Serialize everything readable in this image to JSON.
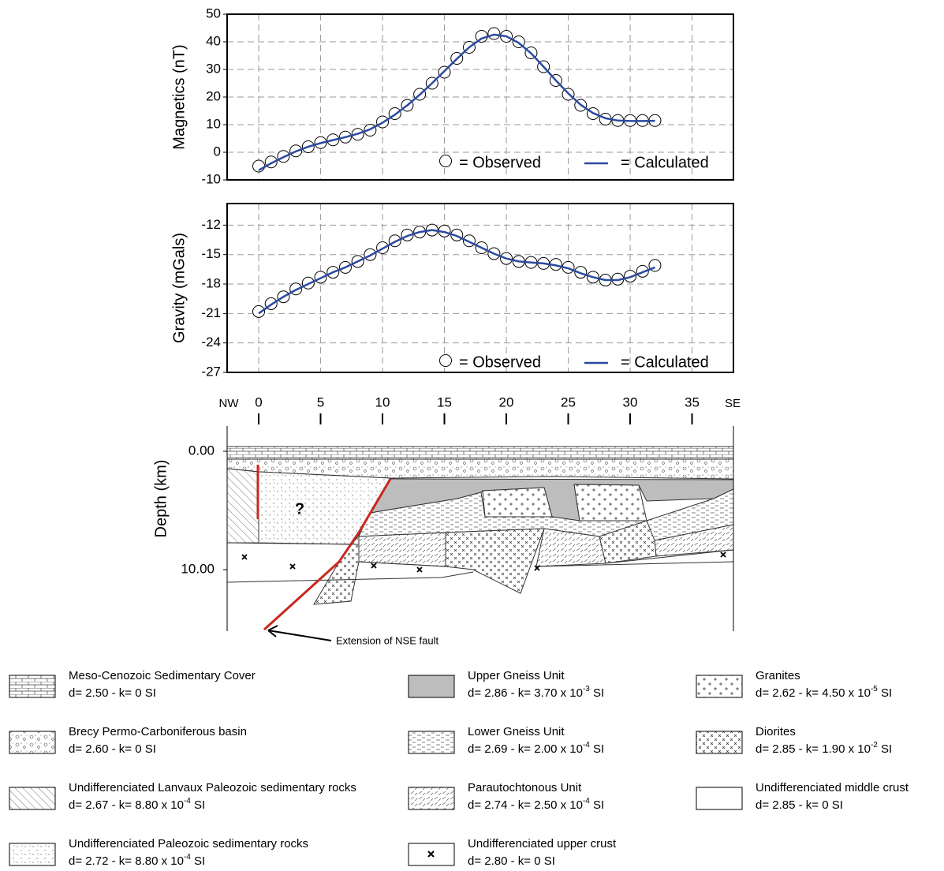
{
  "chart_data": [
    {
      "type": "line",
      "ylabel": "Magnetics (nT)",
      "xlim": [
        -2.55,
        38.34
      ],
      "ylim": [
        -10,
        50
      ],
      "yticks": [
        -10,
        0,
        10,
        20,
        30,
        40,
        50
      ],
      "xticks": [
        0,
        5,
        10,
        15,
        20,
        25,
        30,
        35
      ],
      "grid": true,
      "x": [
        0,
        1,
        2,
        3,
        4,
        5,
        6,
        7,
        8,
        9,
        10,
        11,
        12,
        13,
        14,
        15,
        16,
        17,
        18,
        19,
        20,
        21,
        22,
        23,
        24,
        25,
        26,
        27,
        28,
        29,
        30,
        31,
        32
      ],
      "series": [
        {
          "name": "= Observed",
          "color": "#000000",
          "marker": "circle",
          "values": [
            -5,
            -3.5,
            -1.5,
            0.5,
            2,
            3.5,
            4.5,
            5.5,
            6.5,
            8,
            11,
            14,
            17,
            21,
            25,
            29,
            34,
            38,
            42,
            43,
            42,
            40,
            36,
            31,
            26,
            21,
            17,
            14,
            12,
            11.5,
            11.5,
            11.5,
            11.5
          ]
        },
        {
          "name": "= Calculated",
          "color": "#2b4aa0",
          "marker": "none",
          "values": [
            -6.5,
            -4,
            -1.8,
            0.3,
            2,
            3.3,
            4.4,
            5.5,
            6.7,
            8.3,
            10.7,
            13.6,
            17,
            20.8,
            25,
            29.4,
            33.8,
            38,
            41.2,
            42.6,
            42,
            39.6,
            35.8,
            31,
            26,
            21.3,
            17.2,
            14.2,
            12.3,
            11.5,
            11.3,
            11.3,
            11.4
          ]
        }
      ]
    },
    {
      "type": "line",
      "ylabel": "Gravity (mGals)",
      "xlim": [
        -2.55,
        38.34
      ],
      "ylim": [
        -27,
        -9.8
      ],
      "yticks": [
        -27,
        -24,
        -21,
        -18,
        -15,
        -12
      ],
      "xticks": [
        0,
        5,
        10,
        15,
        20,
        25,
        30,
        35
      ],
      "grid": true,
      "x": [
        0,
        1,
        2,
        3,
        4,
        5,
        6,
        7,
        8,
        9,
        10,
        11,
        12,
        13,
        14,
        15,
        16,
        17,
        18,
        19,
        20,
        21,
        22,
        23,
        24,
        25,
        26,
        27,
        28,
        29,
        30,
        31,
        32
      ],
      "series": [
        {
          "name": "= Observed",
          "color": "#000000",
          "marker": "circle",
          "values": [
            -20.8,
            -20,
            -19.3,
            -18.5,
            -17.9,
            -17.3,
            -16.8,
            -16.3,
            -15.7,
            -15,
            -14.3,
            -13.6,
            -13,
            -12.7,
            -12.5,
            -12.6,
            -13,
            -13.6,
            -14.3,
            -14.9,
            -15.4,
            -15.7,
            -15.8,
            -15.9,
            -16,
            -16.3,
            -16.8,
            -17.3,
            -17.6,
            -17.5,
            -17.2,
            -16.7,
            -16.1
          ]
        },
        {
          "name": "= Calculated",
          "color": "#2b4aa0",
          "marker": "none",
          "values": [
            -21,
            -20.1,
            -19.3,
            -18.6,
            -18,
            -17.4,
            -16.8,
            -16.3,
            -15.7,
            -15.1,
            -14.4,
            -13.7,
            -13.1,
            -12.7,
            -12.5,
            -12.7,
            -13.1,
            -13.7,
            -14.3,
            -14.9,
            -15.4,
            -15.7,
            -15.8,
            -15.9,
            -16.1,
            -16.4,
            -16.9,
            -17.3,
            -17.6,
            -17.6,
            -17.3,
            -16.8,
            -16.3
          ]
        }
      ]
    }
  ],
  "section": {
    "nw": "NW",
    "se": "SE",
    "xticks": [
      0,
      5,
      10,
      15,
      20,
      25,
      30,
      35
    ],
    "ylabel": "Depth (km)",
    "yticks": [
      {
        "value": 0,
        "label": "0.00"
      },
      {
        "value": 10,
        "label": "10.00"
      }
    ],
    "question": "?",
    "annotation": "Extension of NSE fault"
  },
  "legend": [
    {
      "name": "Meso-Cenozoic Sedimentary Cover",
      "desc": "d= 2.50 - k= 0 SI"
    },
    {
      "name": "Brecy Permo-Carboniferous basin",
      "desc": "d= 2.60 - k= 0 SI"
    },
    {
      "name": "Undifferenciated Lanvaux Paleozoic sedimentary rocks",
      "desc": "d= 2.67 - k= 8.80 x 10",
      "exp": "-4",
      "unit": " SI"
    },
    {
      "name": "Undifferenciated Paleozoic sedimentary rocks",
      "desc": "d= 2.72 - k= 8.80 x 10",
      "exp": "-4",
      "unit": " SI"
    },
    {
      "name": "Upper Gneiss Unit",
      "desc": "d= 2.86 - k= 3.70 x 10",
      "exp": "-3",
      "unit": " SI"
    },
    {
      "name": "Lower Gneiss Unit",
      "desc": "d= 2.69 - k= 2.00 x 10",
      "exp": "-4",
      "unit": " SI"
    },
    {
      "name": "Parautochtonous Unit",
      "desc": "d= 2.74 - k= 2.50 x 10",
      "exp": "-4",
      "unit": " SI"
    },
    {
      "name": "Undifferenciated upper crust",
      "desc": "d= 2.80 - k= 0 SI"
    },
    {
      "name": "Granites",
      "desc": "d= 2.62 - k= 4.50 x 10",
      "exp": "-5",
      "unit": " SI"
    },
    {
      "name": "Diorites",
      "desc": "d= 2.85 - k= 1.90 x 10",
      "exp": "-2",
      "unit": " SI"
    },
    {
      "name": "Undifferenciated middle crust",
      "desc": "d= 2.85 - k= 0 SI"
    }
  ]
}
